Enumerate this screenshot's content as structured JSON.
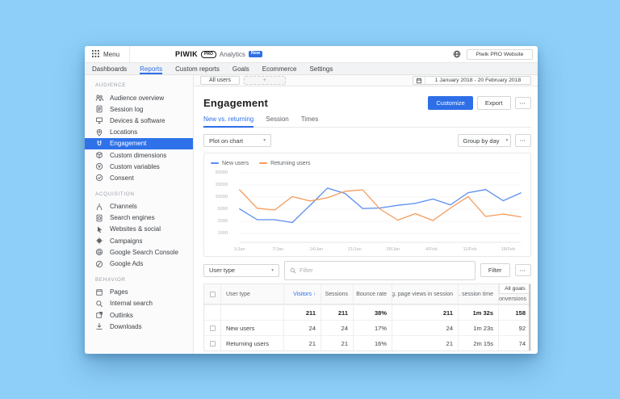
{
  "window": {
    "topbar": {
      "menu_label": "Menu",
      "brand": "PIWIK",
      "brand_badge": "PRO",
      "product_label": "Analytics",
      "new_badge": "New",
      "website_selector_label": "Piwik PRO Website"
    },
    "nav_tabs": [
      {
        "label": "Dashboards"
      },
      {
        "label": "Reports",
        "active": true
      },
      {
        "label": "Custom reports"
      },
      {
        "label": "Goals"
      },
      {
        "label": "Ecommerce"
      },
      {
        "label": "Settings"
      }
    ]
  },
  "segment_bar": {
    "all_users_label": "All users",
    "add_segment_label": "+",
    "date_range": "1 January 2018 - 20 February 2018"
  },
  "sidebar": {
    "sections": [
      {
        "title": "AUDIENCE",
        "items": [
          {
            "label": "Audience overview",
            "icon": "audience-overview-icon"
          },
          {
            "label": "Session log",
            "icon": "session-log-icon"
          },
          {
            "label": "Devices & software",
            "icon": "devices-software-icon"
          },
          {
            "label": "Locations",
            "icon": "location-pin-icon"
          },
          {
            "label": "Engagement",
            "icon": "magnet-icon",
            "active": true
          },
          {
            "label": "Custom dimensions",
            "icon": "cube-icon"
          },
          {
            "label": "Custom variables",
            "icon": "variable-icon"
          },
          {
            "label": "Consent",
            "icon": "consent-check-icon"
          }
        ]
      },
      {
        "title": "ACQUISITION",
        "items": [
          {
            "label": "Channels",
            "icon": "channels-icon"
          },
          {
            "label": "Search engines",
            "icon": "search-engines-icon"
          },
          {
            "label": "Websites & social",
            "icon": "cursor-icon"
          },
          {
            "label": "Campaigns",
            "icon": "campaign-icon"
          },
          {
            "label": "Google Search Console",
            "icon": "google-search-console-icon"
          },
          {
            "label": "Google Ads",
            "icon": "google-ads-icon"
          }
        ]
      },
      {
        "title": "BEHAVIOR",
        "items": [
          {
            "label": "Pages",
            "icon": "pages-icon"
          },
          {
            "label": "Internal search",
            "icon": "magnifier-icon"
          },
          {
            "label": "Outlinks",
            "icon": "outlink-icon"
          },
          {
            "label": "Downloads",
            "icon": "download-icon"
          }
        ]
      }
    ]
  },
  "report": {
    "title": "Engagement",
    "customize_button": "Customize",
    "export_button": "Export",
    "tabs": [
      {
        "label": "New vs. returning",
        "active": true
      },
      {
        "label": "Session"
      },
      {
        "label": "Times"
      }
    ],
    "plot_select": "Plot on chart",
    "group_by_select": "Group by day"
  },
  "chart_data": {
    "type": "line",
    "x_ticks": [
      "1/Jan",
      "7/Jan",
      "14/Jan",
      "21/Jan",
      "28/Jan",
      "4/Feb",
      "11/Feb",
      "18/Feb"
    ],
    "y_ticks": [
      20000,
      15000,
      10000,
      5000,
      2000,
      1000
    ],
    "ylim": [
      0,
      20000
    ],
    "grid": true,
    "legend_position": "top-left",
    "series": [
      {
        "name": "New users",
        "color": "#5b8def",
        "values": [
          5100,
          2400,
          2400,
          1900,
          6500,
          13700,
          11500,
          5300,
          5500,
          6600,
          7400,
          9200,
          6800,
          11800,
          13100,
          8500,
          11700
        ]
      },
      {
        "name": "Returning users",
        "color": "#f59b5b",
        "values": [
          13000,
          5400,
          4800,
          10200,
          8400,
          9700,
          12400,
          13000,
          5000,
          2300,
          3900,
          2200,
          5500,
          10200,
          3200,
          3800,
          3100
        ]
      }
    ]
  },
  "table_section": {
    "dimension_select": "User type",
    "filter_placeholder": "Filter",
    "filter_button": "Filter",
    "group_header": "All goals",
    "columns": {
      "user_type": "User type",
      "visitors": "Visitors",
      "sessions": "Sessions",
      "bounce_rate": "Bounce rate",
      "avg_page_views": "Avg. page views in session",
      "avg_session_time": "Avg. session time",
      "conversions": "Conversions"
    },
    "sort": {
      "column": "Visitors",
      "direction": "desc"
    },
    "rows": [
      {
        "user_type": "",
        "visitors": "211",
        "sessions": "211",
        "bounce_rate": "38%",
        "avg_page_views": "211",
        "avg_session_time": "1m 32s",
        "conversions": "158",
        "total": true
      },
      {
        "user_type": "New users",
        "visitors": "24",
        "sessions": "24",
        "bounce_rate": "17%",
        "avg_page_views": "24",
        "avg_session_time": "1m 23s",
        "conversions": "92"
      },
      {
        "user_type": "Returning users",
        "visitors": "21",
        "sessions": "21",
        "bounce_rate": "16%",
        "avg_page_views": "21",
        "avg_session_time": "2m 15s",
        "conversions": "74"
      }
    ]
  },
  "glyphs": {
    "chevron_down": "▾",
    "sort_desc": "↓",
    "ellipsis": "⋯"
  },
  "colors": {
    "page_background": "#8dcff8",
    "accent_blue": "#2e6fe8",
    "sidebar_active": "#2e71e9",
    "chart_blue": "#5b8def",
    "chart_orange": "#f59b5b"
  }
}
